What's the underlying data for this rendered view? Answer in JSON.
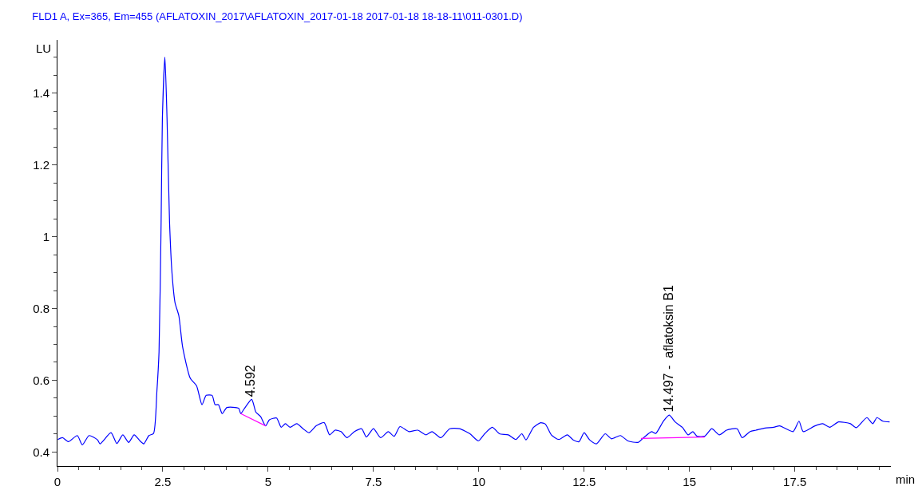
{
  "chart_data": {
    "type": "line",
    "title": "FLD1 A, Ex=365, Em=455 (AFLATOXIN_2017\\AFLATOXIN_2017-01-18 2017-01-18 18-18-11\\011-0301.D)",
    "xlabel": "min",
    "ylabel": "LU",
    "xlim": [
      0,
      19.78
    ],
    "ylim": [
      0.361,
      1.548
    ],
    "xticks": [
      0,
      2.5,
      5,
      7.5,
      10,
      12.5,
      15,
      17.5
    ],
    "yticks": [
      0.4,
      0.6,
      0.8,
      1,
      1.2,
      1.4
    ],
    "series": [
      {
        "color": "#0000ff",
        "x": [
          0.01,
          0.12,
          0.26,
          0.47,
          0.59,
          0.75,
          0.95,
          1.01,
          1.27,
          1.41,
          1.55,
          1.69,
          1.82,
          1.96,
          2.05,
          2.17,
          2.28,
          2.36,
          2.41,
          2.46,
          2.49,
          2.55,
          2.6,
          2.66,
          2.72,
          2.79,
          2.88,
          2.97,
          3.15,
          3.3,
          3.43,
          3.53,
          3.67,
          3.74,
          3.82,
          3.91,
          4.02,
          4.3,
          4.35,
          4.44,
          4.61,
          4.71,
          4.82,
          4.94,
          5.03,
          5.2,
          5.31,
          5.41,
          5.52,
          5.68,
          5.83,
          5.97,
          6.14,
          6.33,
          6.46,
          6.59,
          6.73,
          6.87,
          7.05,
          7.22,
          7.33,
          7.5,
          7.67,
          7.85,
          7.99,
          8.13,
          8.34,
          8.55,
          8.75,
          8.89,
          9.1,
          9.31,
          9.54,
          9.79,
          9.99,
          10.14,
          10.32,
          10.49,
          10.7,
          10.88,
          11.02,
          11.12,
          11.3,
          11.47,
          11.58,
          11.72,
          11.9,
          12.1,
          12.24,
          12.38,
          12.5,
          12.63,
          12.79,
          13.0,
          13.15,
          13.36,
          13.54,
          13.78,
          13.91,
          14.1,
          14.2,
          14.38,
          14.52,
          14.66,
          14.83,
          14.97,
          15.08,
          15.18,
          15.36,
          15.53,
          15.71,
          15.88,
          16.13,
          16.25,
          16.44,
          16.58,
          16.79,
          17.0,
          17.14,
          17.46,
          17.6,
          17.7,
          17.98,
          18.16,
          18.33,
          18.54,
          18.82,
          18.96,
          19.21,
          19.35,
          19.45,
          19.59,
          19.75
        ],
        "values": [
          0.435,
          0.44,
          0.429,
          0.446,
          0.42,
          0.446,
          0.434,
          0.423,
          0.454,
          0.424,
          0.448,
          0.427,
          0.448,
          0.431,
          0.423,
          0.446,
          0.452,
          0.57,
          0.678,
          1.04,
          1.33,
          1.5,
          1.33,
          1.04,
          0.896,
          0.816,
          0.78,
          0.693,
          0.606,
          0.585,
          0.532,
          0.558,
          0.558,
          0.532,
          0.532,
          0.507,
          0.524,
          0.522,
          0.507,
          0.522,
          0.547,
          0.511,
          0.499,
          0.473,
          0.49,
          0.495,
          0.469,
          0.479,
          0.469,
          0.479,
          0.465,
          0.454,
          0.473,
          0.482,
          0.448,
          0.461,
          0.457,
          0.44,
          0.457,
          0.465,
          0.442,
          0.465,
          0.44,
          0.457,
          0.444,
          0.471,
          0.457,
          0.461,
          0.448,
          0.457,
          0.44,
          0.465,
          0.465,
          0.451,
          0.431,
          0.451,
          0.469,
          0.451,
          0.448,
          0.435,
          0.451,
          0.434,
          0.469,
          0.482,
          0.478,
          0.448,
          0.435,
          0.448,
          0.434,
          0.429,
          0.454,
          0.434,
          0.423,
          0.451,
          0.437,
          0.446,
          0.431,
          0.427,
          0.44,
          0.457,
          0.452,
          0.486,
          0.503,
          0.484,
          0.469,
          0.448,
          0.457,
          0.444,
          0.444,
          0.465,
          0.448,
          0.461,
          0.465,
          0.44,
          0.457,
          0.461,
          0.467,
          0.469,
          0.473,
          0.457,
          0.486,
          0.457,
          0.473,
          0.479,
          0.469,
          0.484,
          0.479,
          0.468,
          0.496,
          0.479,
          0.496,
          0.486,
          0.484
        ]
      },
      {
        "color": "#ff00ff",
        "x": [
          4.35,
          4.94
        ],
        "values": [
          0.507,
          0.473
        ]
      },
      {
        "color": "#ff00ff",
        "x": [
          13.85,
          15.36
        ],
        "values": [
          0.438,
          0.442
        ]
      }
    ],
    "annotations": [
      {
        "text": "4.592",
        "x": 4.592,
        "y": 0.55
      },
      {
        "text": "14.497 -  aflatoksin B1",
        "x": 14.497,
        "y": 0.506
      }
    ]
  }
}
